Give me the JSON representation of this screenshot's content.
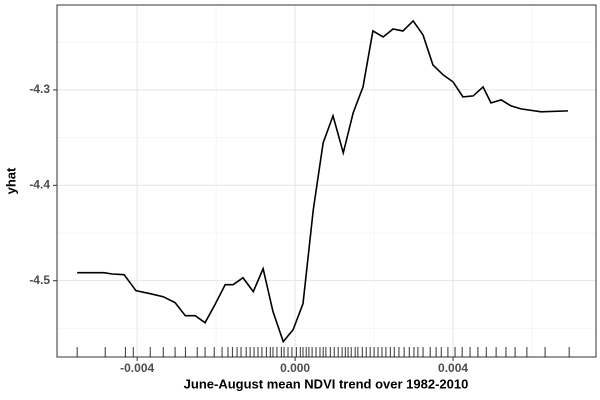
{
  "chart_data": {
    "type": "line",
    "x_label": "June-August mean NDVI trend over 1982-2010",
    "y_label": "yhat",
    "x": [
      -0.00552,
      -0.00484,
      -0.00463,
      -0.00433,
      -0.00403,
      -0.00367,
      -0.00334,
      -0.00304,
      -0.00278,
      -0.00253,
      -0.00228,
      -0.00203,
      -0.00177,
      -0.00157,
      -0.00132,
      -0.00106,
      -0.00081,
      -0.00056,
      -0.0003,
      -5e-05,
      0.0002,
      0.00046,
      0.00071,
      0.00096,
      0.00122,
      0.00147,
      0.00172,
      0.00197,
      0.00223,
      0.00248,
      0.00273,
      0.00299,
      0.00324,
      0.00349,
      0.00375,
      0.004,
      0.00425,
      0.00451,
      0.00476,
      0.00496,
      0.00522,
      0.00547,
      0.00572,
      0.00623,
      0.00691
    ],
    "series": [
      {
        "color": "#000000",
        "values": [
          -4.4916,
          -4.4916,
          -4.493,
          -4.4937,
          -4.5105,
          -4.5136,
          -4.5168,
          -4.523,
          -4.5367,
          -4.5367,
          -4.544,
          -4.5251,
          -4.5042,
          -4.5042,
          -4.4969,
          -4.5115,
          -4.4874,
          -4.5325,
          -4.5639,
          -4.5513,
          -4.5241,
          -4.4257,
          -4.3555,
          -4.3272,
          -4.366,
          -4.3241,
          -4.2969,
          -4.2382,
          -4.2445,
          -4.2361,
          -4.2382,
          -4.2277,
          -4.2424,
          -4.2738,
          -4.2843,
          -4.2916,
          -4.3073,
          -4.3063,
          -4.2969,
          -4.3136,
          -4.3105,
          -4.3168,
          -4.3199,
          -4.323,
          -4.322
        ]
      }
    ],
    "rug": [
      -0.00552,
      -0.00481,
      -0.0043,
      -0.0041,
      -0.00367,
      -0.00334,
      -0.00304,
      -0.00278,
      -0.00248,
      -0.00228,
      -0.00205,
      -0.00185,
      -0.0017,
      -0.00159,
      -0.00147,
      -0.00137,
      -0.00124,
      -0.00114,
      -0.00104,
      -0.00094,
      -0.00084,
      -0.00073,
      -0.00063,
      -0.00056,
      -0.00046,
      -0.00035,
      -0.00028,
      -0.00018,
      -8e-05,
      3e-05,
      0.00013,
      0.0002,
      0.00028,
      0.00035,
      0.00043,
      0.00053,
      0.00063,
      0.00071,
      0.00078,
      0.00089,
      0.00099,
      0.00109,
      0.00119,
      0.00127,
      0.00134,
      0.00142,
      0.00152,
      0.00159,
      0.0017,
      0.0018,
      0.0019,
      0.002,
      0.0021,
      0.0022,
      0.0023,
      0.00241,
      0.00251,
      0.00263,
      0.00276,
      0.00289,
      0.00301,
      0.00311,
      0.00324,
      0.00342,
      0.00357,
      0.0037,
      0.00387,
      0.00405,
      0.00423,
      0.00443,
      0.00463,
      0.00484,
      0.00509,
      0.00534,
      0.00557,
      0.00587,
      0.00633,
      0.00694
    ],
    "xlim": [
      -0.00603,
      0.00762
    ],
    "ylim": [
      -4.58,
      -4.211
    ],
    "xticks": [
      -0.004,
      {
        "value": 0,
        "label": "0.000"
      },
      0.004
    ],
    "yticks": [
      -4.3,
      -4.4,
      -4.5
    ],
    "x_minor_grid": [
      -0.006,
      -0.002,
      0.002,
      0.006
    ],
    "y_minor_grid": [
      -4.25,
      -4.35,
      -4.45,
      -4.55
    ],
    "grid": true
  }
}
